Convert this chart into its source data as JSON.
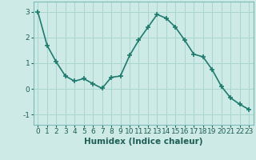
{
  "x": [
    0,
    1,
    2,
    3,
    4,
    5,
    6,
    7,
    8,
    9,
    10,
    11,
    12,
    13,
    14,
    15,
    16,
    17,
    18,
    19,
    20,
    21,
    22,
    23
  ],
  "y": [
    3.0,
    1.7,
    1.05,
    0.5,
    0.3,
    0.4,
    0.2,
    0.02,
    0.45,
    0.5,
    1.3,
    1.9,
    2.4,
    2.9,
    2.75,
    2.4,
    1.9,
    1.35,
    1.25,
    0.75,
    0.1,
    -0.35,
    -0.6,
    -0.8
  ],
  "line_color": "#1e7b6e",
  "marker": "+",
  "marker_size": 4,
  "marker_linewidth": 1.2,
  "bg_color": "#ceeae6",
  "grid_color": "#a8d5cf",
  "xlabel": "Humidex (Indice chaleur)",
  "xlim": [
    -0.5,
    23.5
  ],
  "ylim": [
    -1.4,
    3.4
  ],
  "yticks": [
    -1,
    0,
    1,
    2,
    3
  ],
  "xticks": [
    0,
    1,
    2,
    3,
    4,
    5,
    6,
    7,
    8,
    9,
    10,
    11,
    12,
    13,
    14,
    15,
    16,
    17,
    18,
    19,
    20,
    21,
    22,
    23
  ],
  "tick_fontsize": 6.5,
  "label_fontsize": 7.5,
  "linewidth": 1.2
}
